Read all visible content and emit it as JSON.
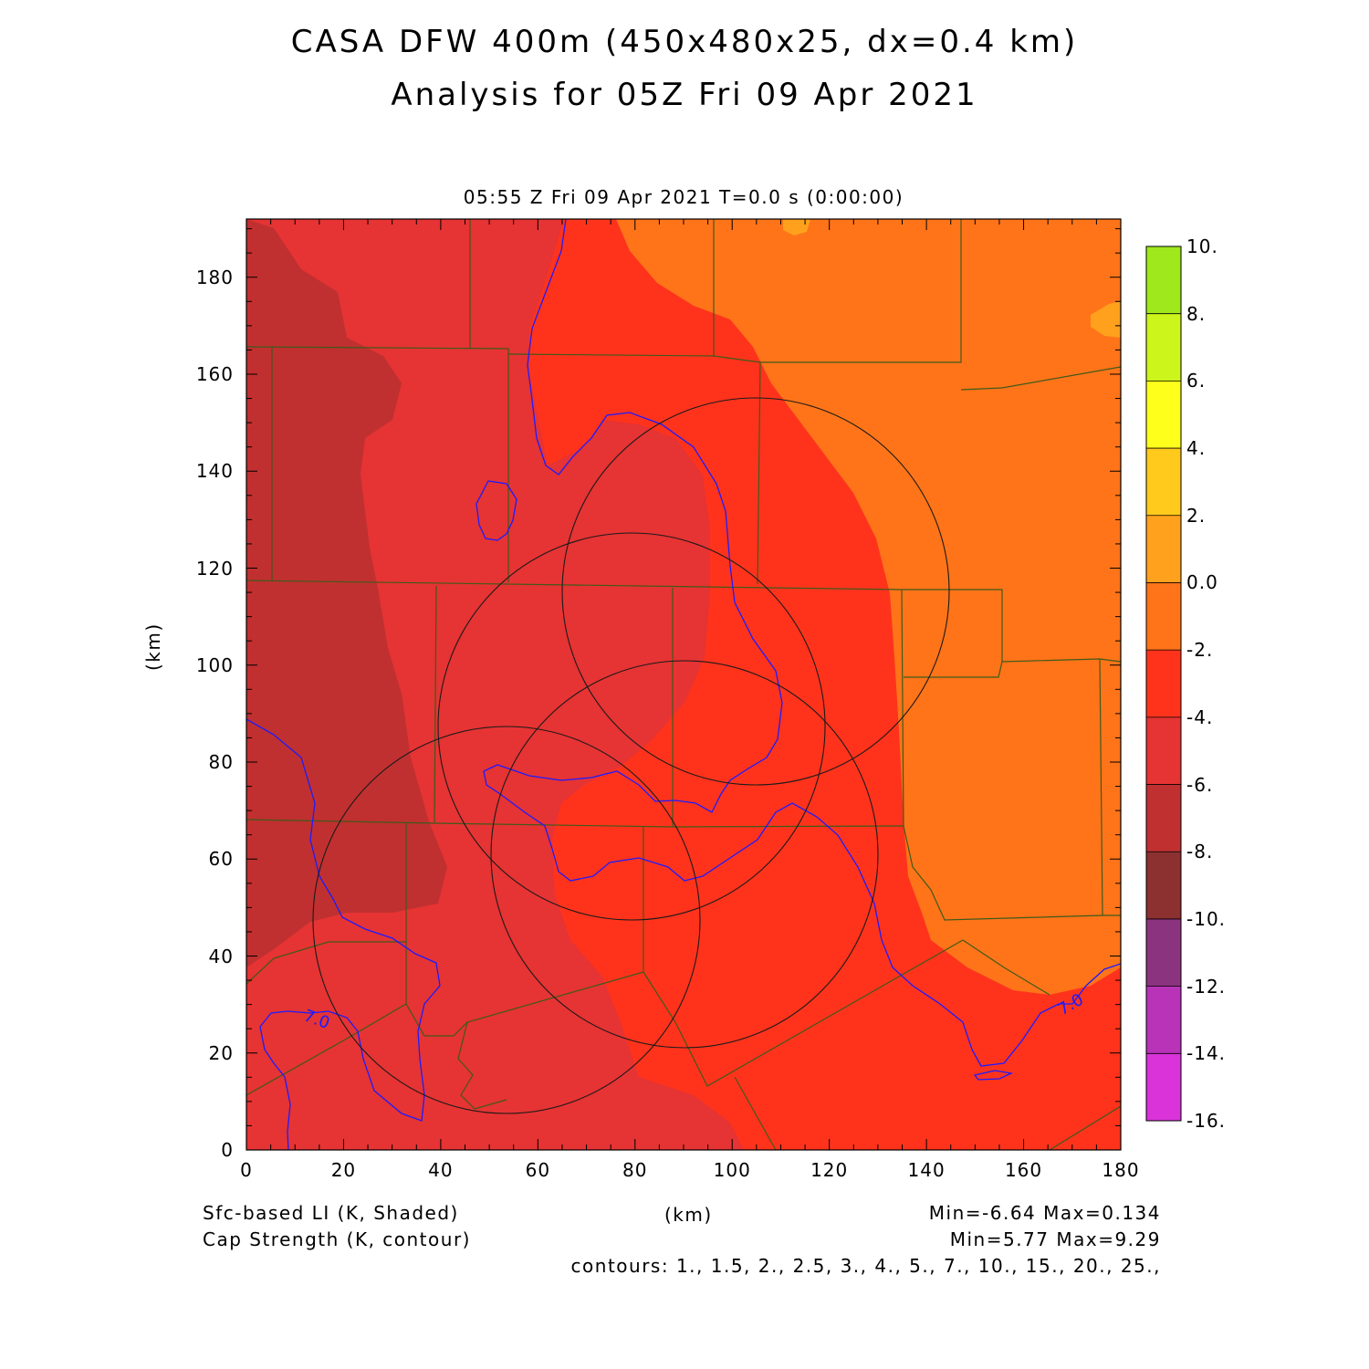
{
  "header": {
    "title_line1": "CASA DFW 400m (450x480x25, dx=0.4 km)",
    "title_line2": "Analysis for 05Z Fri 09 Apr 2021",
    "valid_time": "05:55 Z Fri 09 Apr 2021    T=0.0 s (0:00:00)"
  },
  "axes": {
    "x_label": "(km)",
    "y_label": "(km)",
    "x_ticks": [
      "0",
      "20",
      "40",
      "60",
      "80",
      "100",
      "120",
      "140",
      "160",
      "180"
    ],
    "y_ticks": [
      "0",
      "20",
      "40",
      "60",
      "80",
      "100",
      "120",
      "140",
      "160",
      "180"
    ],
    "x_range": [
      0,
      180
    ],
    "y_range": [
      0,
      192
    ]
  },
  "colorbar": {
    "labels": [
      "10.",
      "8.",
      "6.",
      "4.",
      "2.",
      "0.0",
      "-2.",
      "-4.",
      "-6.",
      "-8.",
      "-10.",
      "-12.",
      "-14.",
      "-16."
    ],
    "colors": [
      "#9ee81c",
      "#ccf51c",
      "#ffff1c",
      "#ffca1c",
      "#ffa11c",
      "#ff7419",
      "#ff331c",
      "#e63333",
      "#c03030",
      "#8c3030",
      "#8c3380",
      "#b833b8",
      "#d933d9"
    ]
  },
  "footer": {
    "field1": "Sfc-based LI (K, Shaded)",
    "field2": "Cap Strength (K, contour)",
    "xunit": "(km)",
    "minmax1": "Min=-6.64  Max=0.134",
    "minmax2": "Min=5.77  Max=9.29",
    "contours": "contours: 1., 1.5, 2., 2.5, 3., 4., 5., 7., 10., 15., 20., 25.,"
  },
  "map": {
    "contour_labels": [
      "7.0",
      "7.0"
    ],
    "colors": {
      "li_minus8_6": "#c03030",
      "li_minus6_4": "#e63333",
      "li_minus4_2": "#ff331c",
      "li_minus2_0": "#ff7419",
      "li_0_2": "#ffa11c",
      "county_lines": "#3f5a1a",
      "cap_contour": "#1c1cff",
      "radar_rings": "#1a1a1a"
    }
  }
}
